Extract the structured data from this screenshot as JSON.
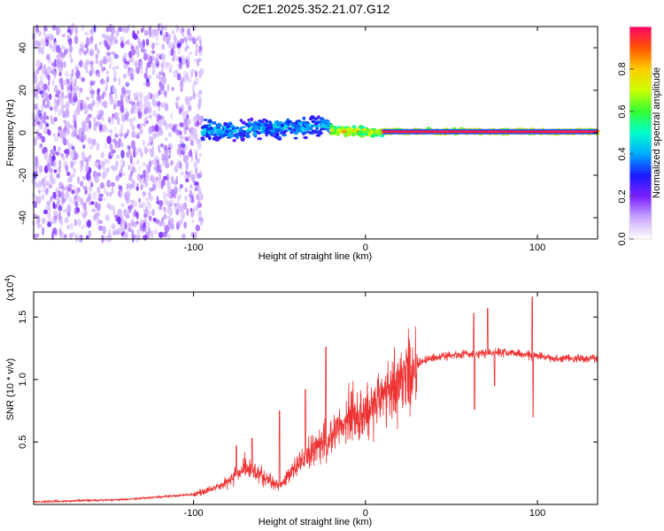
{
  "title": "C2E1.2025.352.21.07.G12",
  "chart_data": [
    {
      "type": "heatmap",
      "name": "spectrogram",
      "xlabel": "Height of straight line (km)",
      "ylabel": "Frequency (Hz)",
      "xlim": [
        -193,
        135
      ],
      "ylim": [
        -50,
        50
      ],
      "xticks": [
        -100,
        0,
        100
      ],
      "xtick_labels": [
        "-100",
        "0",
        "100"
      ],
      "yticks": [
        -40,
        -20,
        0,
        20,
        40
      ],
      "ytick_labels": [
        "-40",
        "-20",
        "0",
        "20",
        "40"
      ],
      "noise_region_km": [
        -193,
        -95
      ],
      "signal_start_km": -95,
      "features": [
        {
          "x_range": [
            -95,
            -20
          ],
          "center_freq_hz": [
            1,
            3
          ],
          "spread_hz": 6,
          "amplitude": [
            0.3,
            0.5
          ]
        },
        {
          "x_range": [
            -20,
            10
          ],
          "center_freq_hz": [
            1,
            0
          ],
          "spread_hz": 3,
          "amplitude": [
            0.6,
            0.9
          ]
        },
        {
          "x_range": [
            10,
            135
          ],
          "center_freq_hz": [
            0.5,
            0.5
          ],
          "spread_hz": 1.5,
          "amplitude": [
            0.9,
            1.0
          ]
        }
      ],
      "colorbar": {
        "label": "Normalized spectral amplitude",
        "range": [
          0,
          1
        ],
        "ticks": [
          0.0,
          0.2,
          0.4,
          0.6,
          0.8
        ],
        "tick_labels": [
          "0.0",
          "0.2",
          "0.4",
          "0.6",
          "0.8"
        ],
        "colors": [
          "#ffffff",
          "#c9a6ff",
          "#7a1fff",
          "#1a1aff",
          "#00aaff",
          "#00ffcc",
          "#33ff33",
          "#ccff00",
          "#ffcc00",
          "#ff5500",
          "#ff0066"
        ]
      }
    },
    {
      "type": "line",
      "name": "snr",
      "xlabel": "Height of straight line (km)",
      "ylabel": "SNR (10 * v/v)",
      "y_scale_label": "(x10",
      "y_scale_exponent": "4",
      "y_scale_suffix": ")",
      "xlim": [
        -193,
        135
      ],
      "ylim": [
        0,
        1.7
      ],
      "xticks": [
        -100,
        0,
        100
      ],
      "xtick_labels": [
        "-100",
        "0",
        "100"
      ],
      "yticks": [
        0.5,
        1.0,
        1.5
      ],
      "ytick_labels": [
        "0.5",
        "1.0",
        "1.5"
      ],
      "color": "#ee3333",
      "trend": [
        {
          "x": -193,
          "y": 0.02
        },
        {
          "x": -140,
          "y": 0.04
        },
        {
          "x": -100,
          "y": 0.08
        },
        {
          "x": -90,
          "y": 0.12
        },
        {
          "x": -80,
          "y": 0.18
        },
        {
          "x": -70,
          "y": 0.3
        },
        {
          "x": -60,
          "y": 0.22
        },
        {
          "x": -50,
          "y": 0.15
        },
        {
          "x": -40,
          "y": 0.3
        },
        {
          "x": -30,
          "y": 0.45
        },
        {
          "x": -20,
          "y": 0.55
        },
        {
          "x": -10,
          "y": 0.7
        },
        {
          "x": 0,
          "y": 0.75
        },
        {
          "x": 10,
          "y": 0.85
        },
        {
          "x": 20,
          "y": 1.0
        },
        {
          "x": 30,
          "y": 1.12
        },
        {
          "x": 40,
          "y": 1.18
        },
        {
          "x": 55,
          "y": 1.2
        },
        {
          "x": 80,
          "y": 1.22
        },
        {
          "x": 95,
          "y": 1.2
        },
        {
          "x": 110,
          "y": 1.17
        },
        {
          "x": 135,
          "y": 1.17
        }
      ],
      "spikes": [
        {
          "x": -75,
          "y": 0.47
        },
        {
          "x": -66,
          "y": 0.53
        },
        {
          "x": -50,
          "y": 0.75
        },
        {
          "x": -35,
          "y": 0.92
        },
        {
          "x": -23,
          "y": 1.26
        },
        {
          "x": 63,
          "y": 1.53
        },
        {
          "x": 63.5,
          "y": 0.76
        },
        {
          "x": 71,
          "y": 1.57
        },
        {
          "x": 75,
          "y": 0.95
        },
        {
          "x": 97,
          "y": 1.66
        },
        {
          "x": 97.5,
          "y": 0.7
        }
      ]
    }
  ]
}
